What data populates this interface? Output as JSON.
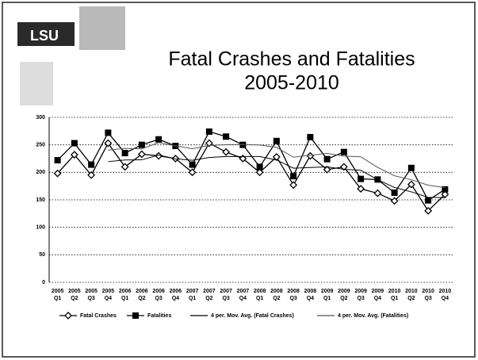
{
  "logo": "LSU",
  "chart_data": {
    "type": "line",
    "title": [
      "Fatal Crashes and Fatalities",
      "2005-2010"
    ],
    "categories": [
      [
        "2005",
        "Q1"
      ],
      [
        "2005",
        "Q2"
      ],
      [
        "2005",
        "Q3"
      ],
      [
        "2005",
        "Q4"
      ],
      [
        "2006",
        "Q1"
      ],
      [
        "2006",
        "Q2"
      ],
      [
        "2006",
        "Q3"
      ],
      [
        "2006",
        "Q4"
      ],
      [
        "2007",
        "Q1"
      ],
      [
        "2007",
        "Q2"
      ],
      [
        "2007",
        "Q3"
      ],
      [
        "2007",
        "Q4"
      ],
      [
        "2008",
        "Q1"
      ],
      [
        "2008",
        "Q2"
      ],
      [
        "2008",
        "Q3"
      ],
      [
        "2008",
        "Q4"
      ],
      [
        "2009",
        "Q1"
      ],
      [
        "2009",
        "Q2"
      ],
      [
        "2009",
        "Q3"
      ],
      [
        "2009",
        "Q4"
      ],
      [
        "2010",
        "Q1"
      ],
      [
        "2010",
        "Q2"
      ],
      [
        "2010",
        "Q3"
      ],
      [
        "2010",
        "Q4"
      ]
    ],
    "series": [
      {
        "name": "Fatal Crashes",
        "color": "#000000",
        "marker": "diamond",
        "values": [
          198,
          232,
          195,
          253,
          210,
          233,
          230,
          225,
          200,
          253,
          237,
          225,
          200,
          228,
          177,
          230,
          205,
          210,
          170,
          162,
          148,
          178,
          130,
          160
        ]
      },
      {
        "name": "Fatalities",
        "color": "#000000",
        "marker": "square",
        "values": [
          222,
          253,
          214,
          272,
          235,
          250,
          260,
          248,
          214,
          274,
          265,
          250,
          210,
          257,
          193,
          264,
          224,
          237,
          188,
          187,
          163,
          208,
          149,
          169
        ]
      },
      {
        "name": "4 per. Mov. Avg. (Fatal Crashes)",
        "color": "#000000",
        "values": [
          null,
          null,
          null,
          219.5,
          222.5,
          222.75,
          231.5,
          224.5,
          222,
          227,
          228.75,
          228.75,
          228.75,
          222.5,
          207.5,
          208.75,
          210,
          205.5,
          203.75,
          186.75,
          172.5,
          164.5,
          154.5,
          154
        ]
      },
      {
        "name": "4 per. Mov. Avg. (Fatalities)",
        "color": "#555555",
        "values": [
          null,
          null,
          null,
          240.25,
          243.5,
          242.75,
          254.25,
          248.25,
          243,
          249,
          250.25,
          250.75,
          249.75,
          245.5,
          227.5,
          231,
          234.5,
          229.5,
          228.25,
          209,
          193.75,
          186.5,
          176.75,
          172.25
        ]
      }
    ],
    "ylim": [
      0,
      300
    ],
    "yticks": [
      0,
      50,
      100,
      150,
      200,
      250,
      300
    ],
    "grid": true,
    "legend": "bottom"
  }
}
